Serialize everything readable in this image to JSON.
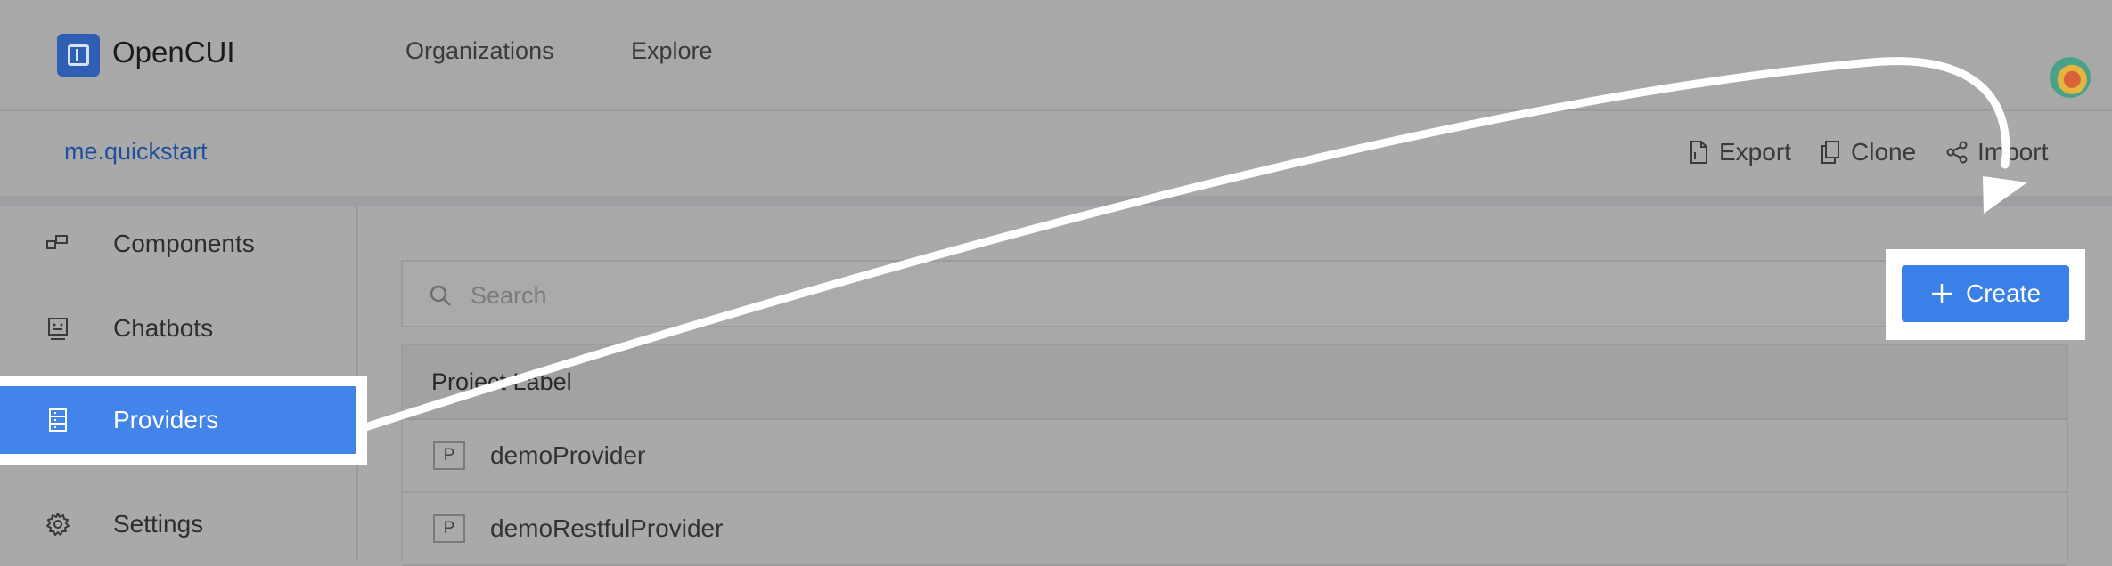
{
  "topnav": {
    "brand": "OpenCUI",
    "links": [
      "Organizations",
      "Explore"
    ],
    "icons": {
      "logo": "opencui-logo-icon",
      "avatar": "user-avatar"
    }
  },
  "subbar": {
    "project": "me.quickstart",
    "actions": [
      {
        "label": "Export",
        "icon": "file-export-icon"
      },
      {
        "label": "Clone",
        "icon": "copy-icon"
      },
      {
        "label": "Import",
        "icon": "share-icon"
      }
    ]
  },
  "sidebar": {
    "items": [
      {
        "label": "Components",
        "icon": "components-icon"
      },
      {
        "label": "Chatbots",
        "icon": "chatbot-icon"
      },
      {
        "label": "Providers",
        "icon": "providers-icon",
        "active": true
      },
      {
        "label": "Settings",
        "icon": "gear-icon"
      }
    ]
  },
  "main": {
    "search": {
      "placeholder": "Search",
      "icon": "search-icon"
    },
    "create": {
      "label": "Create",
      "icon": "plus-icon"
    },
    "table": {
      "header": "Project Label",
      "rows": [
        {
          "badge": "P",
          "name": "demoProvider"
        },
        {
          "badge": "P",
          "name": "demoRestfulProvider"
        }
      ]
    }
  },
  "colors": {
    "accent": "#4284e9",
    "link": "#1f4f9e",
    "dim_background": "#a9a9a9",
    "highlight_frame": "#ffffff"
  }
}
